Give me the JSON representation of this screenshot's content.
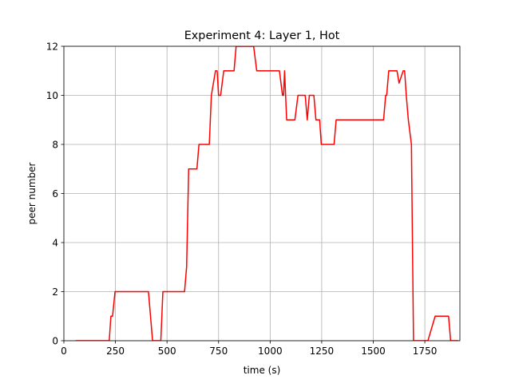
{
  "chart_data": {
    "type": "line",
    "title": "Experiment 4: Layer 1, Hot",
    "xlabel": "time (s)",
    "ylabel": "peer number",
    "xlim": [
      0,
      1920
    ],
    "ylim": [
      0,
      12
    ],
    "xticks": [
      0,
      250,
      500,
      750,
      1000,
      1250,
      1500,
      1750
    ],
    "xtick_labels": [
      "0",
      "250",
      "500",
      "750",
      "1000",
      "1250",
      "1500",
      "1750"
    ],
    "yticks": [
      0,
      2,
      4,
      6,
      8,
      10,
      12
    ],
    "ytick_labels": [
      "0",
      "2",
      "4",
      "6",
      "8",
      "10",
      "12"
    ],
    "grid": true,
    "legend": "none",
    "series": [
      {
        "color": "#ff0000",
        "x": [
          60,
          220,
          228,
          236,
          248,
          410,
          430,
          470,
          480,
          585,
          595,
          605,
          645,
          655,
          705,
          715,
          735,
          743,
          750,
          760,
          775,
          790,
          825,
          835,
          920,
          935,
          1025,
          1045,
          1060,
          1065,
          1070,
          1080,
          1120,
          1135,
          1170,
          1180,
          1190,
          1212,
          1222,
          1240,
          1248,
          1262,
          1310,
          1320,
          1550,
          1560,
          1565,
          1575,
          1615,
          1625,
          1645,
          1652,
          1660,
          1670,
          1685,
          1695,
          1755,
          1765,
          1800,
          1812,
          1865,
          1875,
          1890,
          1910
        ],
        "y": [
          0,
          0,
          1,
          1,
          2,
          2,
          0,
          0,
          2,
          2,
          3,
          7,
          7,
          8,
          8,
          10,
          11,
          11,
          10,
          10,
          11,
          11,
          11,
          12,
          12,
          11,
          11,
          11,
          10,
          10,
          11,
          9,
          9,
          10,
          10,
          9,
          10,
          10,
          9,
          9,
          8,
          8,
          8,
          9,
          9,
          10,
          10,
          11,
          11,
          10.5,
          11,
          11,
          10,
          9,
          8,
          0,
          0,
          0,
          1,
          1,
          1,
          0,
          0,
          0
        ]
      }
    ]
  }
}
